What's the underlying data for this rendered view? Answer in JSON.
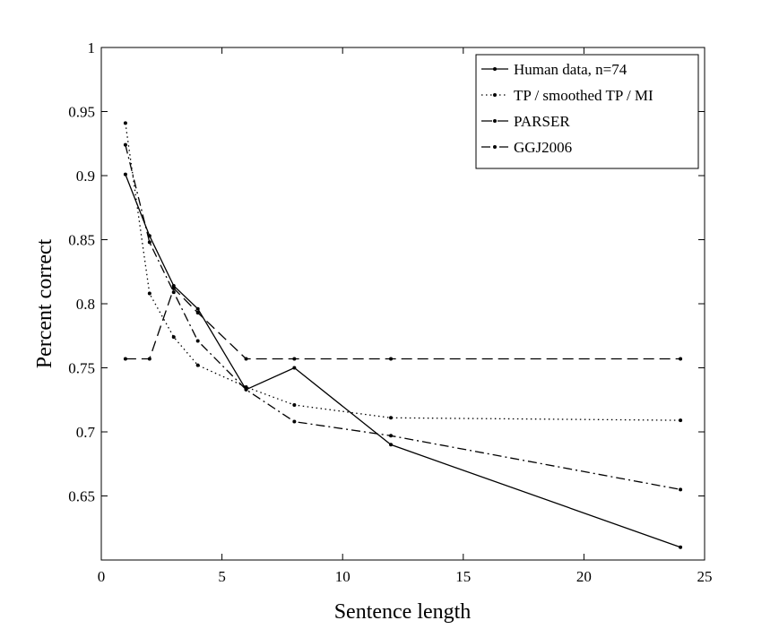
{
  "chart_data": {
    "type": "line",
    "title": "",
    "xlabel": "Sentence length",
    "ylabel": "Percent correct",
    "xlim": [
      0,
      25
    ],
    "ylim": [
      0.6,
      1.0
    ],
    "xticks": [
      0,
      5,
      10,
      15,
      20,
      25
    ],
    "xtick_labels": [
      "0",
      "5",
      "10",
      "15",
      "20",
      "25"
    ],
    "yticks": [
      0.65,
      0.7,
      0.75,
      0.8,
      0.85,
      0.9,
      0.95,
      1.0
    ],
    "ytick_labels": [
      "0.65",
      "0.7",
      "0.75",
      "0.8",
      "0.85",
      "0.9",
      "0.95",
      "1"
    ],
    "grid": false,
    "legend_position": "top-right",
    "series": [
      {
        "name": "Human data, n=74",
        "style": "solid",
        "color": "#000000",
        "x": [
          1,
          2,
          3,
          4,
          6,
          8,
          12,
          24
        ],
        "y": [
          0.901,
          0.853,
          0.814,
          0.796,
          0.733,
          0.75,
          0.69,
          0.61
        ]
      },
      {
        "name": "TP / smoothed TP / MI",
        "style": "dotted",
        "color": "#000000",
        "x": [
          1,
          2,
          3,
          4,
          6,
          8,
          12,
          24
        ],
        "y": [
          0.941,
          0.808,
          0.774,
          0.752,
          0.735,
          0.721,
          0.711,
          0.709
        ]
      },
      {
        "name": "PARSER",
        "style": "dashed",
        "color": "#000000",
        "x": [
          1,
          2,
          3,
          4,
          6,
          8,
          12,
          24
        ],
        "y": [
          0.757,
          0.757,
          0.812,
          0.793,
          0.757,
          0.757,
          0.757,
          0.757
        ]
      },
      {
        "name": "GGJ2006",
        "style": "dashdot",
        "color": "#000000",
        "x": [
          1,
          2,
          3,
          4,
          6,
          8,
          12,
          24
        ],
        "y": [
          0.924,
          0.848,
          0.809,
          0.771,
          0.733,
          0.708,
          0.697,
          0.655
        ]
      }
    ]
  }
}
